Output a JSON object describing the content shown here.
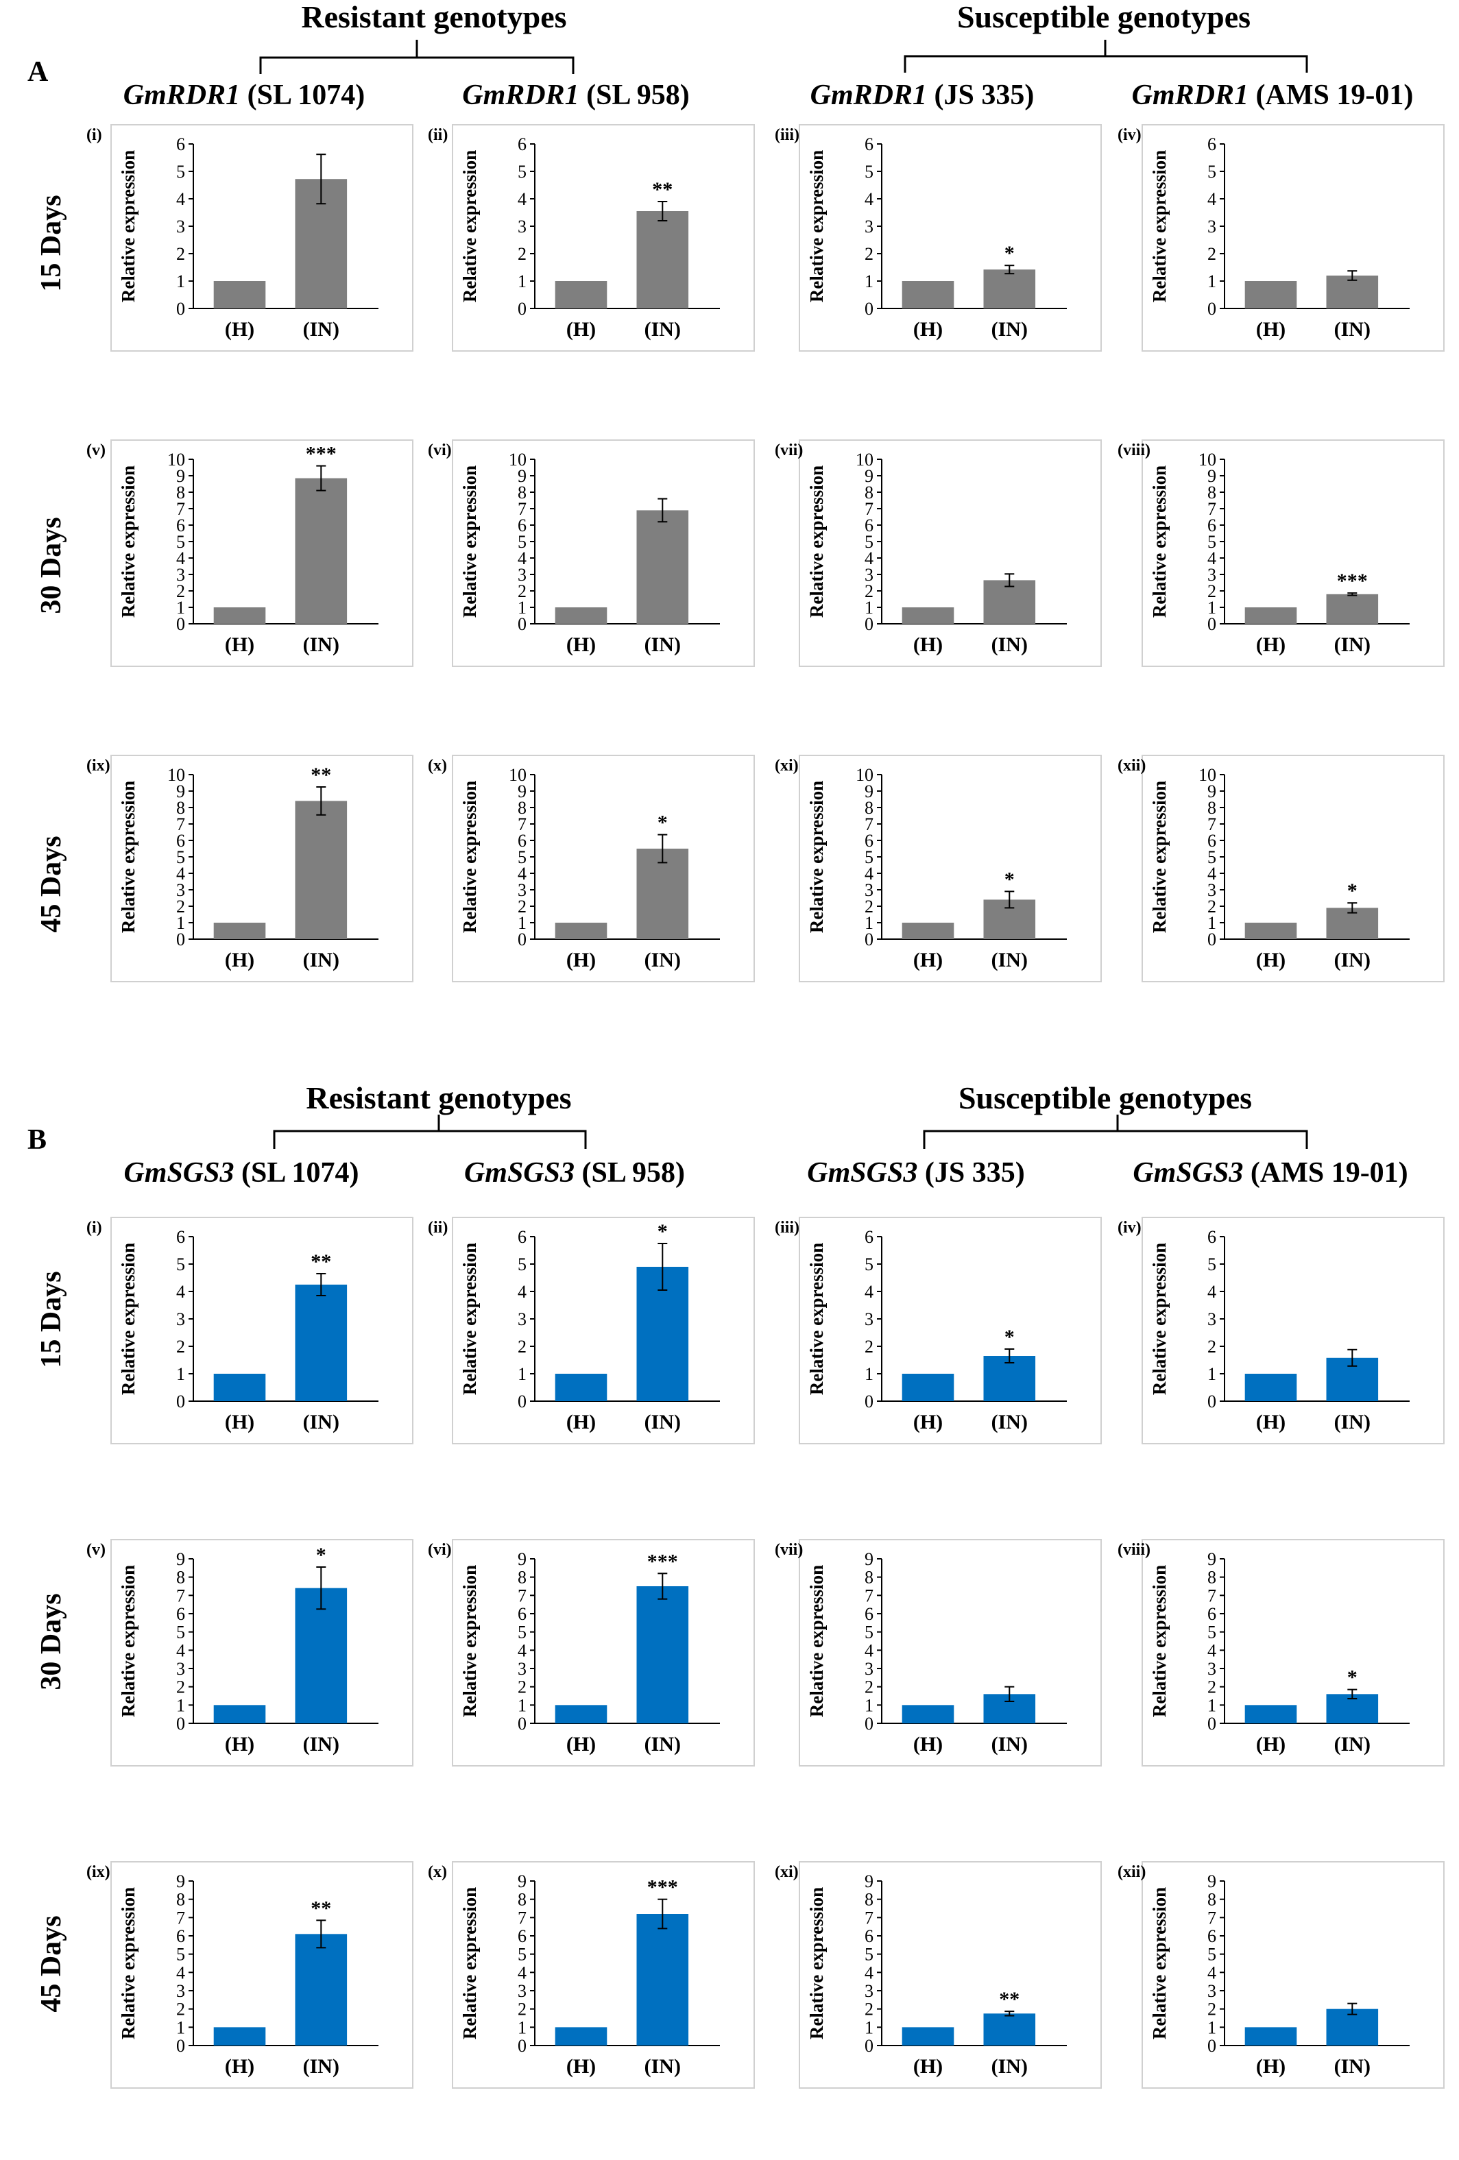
{
  "section_A": {
    "label": "A",
    "group_resistant": "Resistant genotypes",
    "group_susceptible": "Susceptible genotypes",
    "genotype_headers": [
      {
        "gene": "GmRDR1",
        "genotype": " (SL 1074)"
      },
      {
        "gene": "GmRDR1",
        "genotype": " (SL 958)"
      },
      {
        "gene": "GmRDR1",
        "genotype": " (JS 335)"
      },
      {
        "gene": "GmRDR1",
        "genotype": " (AMS 19-01)"
      }
    ],
    "day_labels": [
      "15 Days",
      "30 Days",
      "45 Days"
    ]
  },
  "section_B": {
    "label": "B",
    "group_resistant": "Resistant genotypes",
    "group_susceptible": "Susceptible genotypes",
    "genotype_headers": [
      {
        "gene": "GmSGS3",
        "genotype": " (SL 1074)"
      },
      {
        "gene": "GmSGS3",
        "genotype": " (SL 958)"
      },
      {
        "gene": "GmSGS3",
        "genotype": " (JS 335)"
      },
      {
        "gene": "GmSGS3",
        "genotype": " (AMS 19-01)"
      }
    ],
    "day_labels": [
      "15 Days",
      "30 Days",
      "45 Days"
    ]
  },
  "colors": {
    "section_A_bar": "#7f7f7f",
    "section_B_bar": "#0070c0",
    "axis": "#000000",
    "panel_border": "#d0d0d0"
  },
  "chart_data": [
    {
      "type": "bar",
      "panel": "A(i)",
      "label": "(i)",
      "ylabel": "Relative expression",
      "ylim": [
        0,
        6
      ],
      "yticks": [
        0,
        1,
        2,
        3,
        4,
        5,
        6
      ],
      "categories": [
        "(H)",
        "(IN)"
      ],
      "values": [
        1.0,
        4.72
      ],
      "errors": [
        0.02,
        0.9
      ],
      "significance": [
        "",
        ""
      ]
    },
    {
      "type": "bar",
      "panel": "A(ii)",
      "label": "(ii)",
      "ylabel": "Relative expression",
      "ylim": [
        0,
        6
      ],
      "yticks": [
        0,
        1,
        2,
        3,
        4,
        5,
        6
      ],
      "categories": [
        "(H)",
        "(IN)"
      ],
      "values": [
        1.0,
        3.55
      ],
      "errors": [
        0.02,
        0.35
      ],
      "significance": [
        "",
        "**"
      ]
    },
    {
      "type": "bar",
      "panel": "A(iii)",
      "label": "(iii)",
      "ylabel": "Relative expression",
      "ylim": [
        0,
        6
      ],
      "yticks": [
        0,
        1,
        2,
        3,
        4,
        5,
        6
      ],
      "categories": [
        "(H)",
        "(IN)"
      ],
      "values": [
        1.0,
        1.42
      ],
      "errors": [
        0.02,
        0.15
      ],
      "significance": [
        "",
        "*"
      ]
    },
    {
      "type": "bar",
      "panel": "A(iv)",
      "label": "(iv)",
      "ylabel": "Relative expression",
      "ylim": [
        0,
        6
      ],
      "yticks": [
        0,
        1,
        2,
        3,
        4,
        5,
        6
      ],
      "categories": [
        "(H)",
        "(IN)"
      ],
      "values": [
        1.0,
        1.2
      ],
      "errors": [
        0.02,
        0.17
      ],
      "significance": [
        "",
        ""
      ]
    },
    {
      "type": "bar",
      "panel": "A(v)",
      "label": "(v)",
      "ylabel": "Relative expression",
      "ylim": [
        0,
        10
      ],
      "yticks": [
        0,
        1,
        2,
        3,
        4,
        5,
        6,
        7,
        8,
        9,
        10
      ],
      "categories": [
        "(H)",
        "(IN)"
      ],
      "values": [
        1.0,
        8.85
      ],
      "errors": [
        0.03,
        0.75
      ],
      "significance": [
        "",
        "***"
      ]
    },
    {
      "type": "bar",
      "panel": "A(vi)",
      "label": "(vi)",
      "ylabel": "Relative expression",
      "ylim": [
        0,
        10
      ],
      "yticks": [
        0,
        1,
        2,
        3,
        4,
        5,
        6,
        7,
        8,
        9,
        10
      ],
      "categories": [
        "(H)",
        "(IN)"
      ],
      "values": [
        1.0,
        6.9
      ],
      "errors": [
        0.03,
        0.7
      ],
      "significance": [
        "",
        ""
      ]
    },
    {
      "type": "bar",
      "panel": "A(vii)",
      "label": "(vii)",
      "ylabel": "Relative expression",
      "ylim": [
        0,
        10
      ],
      "yticks": [
        0,
        1,
        2,
        3,
        4,
        5,
        6,
        7,
        8,
        9,
        10
      ],
      "categories": [
        "(H)",
        "(IN)"
      ],
      "values": [
        1.0,
        2.65
      ],
      "errors": [
        0.03,
        0.38
      ],
      "significance": [
        "",
        ""
      ]
    },
    {
      "type": "bar",
      "panel": "A(viii)",
      "label": "(viii)",
      "ylabel": "Relative expression",
      "ylim": [
        0,
        10
      ],
      "yticks": [
        0,
        1,
        2,
        3,
        4,
        5,
        6,
        7,
        8,
        9,
        10
      ],
      "categories": [
        "(H)",
        "(IN)"
      ],
      "values": [
        1.0,
        1.8
      ],
      "errors": [
        0.03,
        0.07
      ],
      "significance": [
        "",
        "***"
      ]
    },
    {
      "type": "bar",
      "panel": "A(ix)",
      "label": "(ix)",
      "ylabel": "Relative expression",
      "ylim": [
        0,
        10
      ],
      "yticks": [
        0,
        1,
        2,
        3,
        4,
        5,
        6,
        7,
        8,
        9,
        10
      ],
      "categories": [
        "(H)",
        "(IN)"
      ],
      "values": [
        1.0,
        8.4
      ],
      "errors": [
        0.03,
        0.85
      ],
      "significance": [
        "",
        "**"
      ]
    },
    {
      "type": "bar",
      "panel": "A(x)",
      "label": "(x)",
      "ylabel": "Relative expression",
      "ylim": [
        0,
        10
      ],
      "yticks": [
        0,
        1,
        2,
        3,
        4,
        5,
        6,
        7,
        8,
        9,
        10
      ],
      "categories": [
        "(H)",
        "(IN)"
      ],
      "values": [
        1.0,
        5.5
      ],
      "errors": [
        0.03,
        0.85
      ],
      "significance": [
        "",
        "*"
      ]
    },
    {
      "type": "bar",
      "panel": "A(xi)",
      "label": "(xi)",
      "ylabel": "Relative expression",
      "ylim": [
        0,
        10
      ],
      "yticks": [
        0,
        1,
        2,
        3,
        4,
        5,
        6,
        7,
        8,
        9,
        10
      ],
      "categories": [
        "(H)",
        "(IN)"
      ],
      "values": [
        1.0,
        2.4
      ],
      "errors": [
        0.03,
        0.5
      ],
      "significance": [
        "",
        "*"
      ]
    },
    {
      "type": "bar",
      "panel": "A(xii)",
      "label": "(xii)",
      "ylabel": "Relative expression",
      "ylim": [
        0,
        10
      ],
      "yticks": [
        0,
        1,
        2,
        3,
        4,
        5,
        6,
        7,
        8,
        9,
        10
      ],
      "categories": [
        "(H)",
        "(IN)"
      ],
      "values": [
        1.0,
        1.9
      ],
      "errors": [
        0.03,
        0.3
      ],
      "significance": [
        "",
        "*"
      ]
    },
    {
      "type": "bar",
      "panel": "B(i)",
      "label": "(i)",
      "ylabel": "Relative expression",
      "ylim": [
        0,
        6
      ],
      "yticks": [
        0,
        1,
        2,
        3,
        4,
        5,
        6
      ],
      "categories": [
        "(H)",
        "(IN)"
      ],
      "values": [
        1.0,
        4.25
      ],
      "errors": [
        0.02,
        0.4
      ],
      "significance": [
        "",
        "**"
      ]
    },
    {
      "type": "bar",
      "panel": "B(ii)",
      "label": "(ii)",
      "ylabel": "Relative expression",
      "ylim": [
        0,
        6
      ],
      "yticks": [
        0,
        1,
        2,
        3,
        4,
        5,
        6
      ],
      "categories": [
        "(H)",
        "(IN)"
      ],
      "values": [
        1.0,
        4.9
      ],
      "errors": [
        0.02,
        0.85
      ],
      "significance": [
        "",
        "*"
      ]
    },
    {
      "type": "bar",
      "panel": "B(iii)",
      "label": "(iii)",
      "ylabel": "Relative expression",
      "ylim": [
        0,
        6
      ],
      "yticks": [
        0,
        1,
        2,
        3,
        4,
        5,
        6
      ],
      "categories": [
        "(H)",
        "(IN)"
      ],
      "values": [
        1.0,
        1.65
      ],
      "errors": [
        0.02,
        0.25
      ],
      "significance": [
        "",
        "*"
      ]
    },
    {
      "type": "bar",
      "panel": "B(iv)",
      "label": "(iv)",
      "ylabel": "Relative expression",
      "ylim": [
        0,
        6
      ],
      "yticks": [
        0,
        1,
        2,
        3,
        4,
        5,
        6
      ],
      "categories": [
        "(H)",
        "(IN)"
      ],
      "values": [
        1.0,
        1.58
      ],
      "errors": [
        0.02,
        0.3
      ],
      "significance": [
        "",
        ""
      ]
    },
    {
      "type": "bar",
      "panel": "B(v)",
      "label": "(v)",
      "ylabel": "Relative expression",
      "ylim": [
        0,
        9
      ],
      "yticks": [
        0,
        1,
        2,
        3,
        4,
        5,
        6,
        7,
        8,
        9
      ],
      "categories": [
        "(H)",
        "(IN)"
      ],
      "values": [
        1.0,
        7.4
      ],
      "errors": [
        0.03,
        1.15
      ],
      "significance": [
        "",
        "*"
      ]
    },
    {
      "type": "bar",
      "panel": "B(vi)",
      "label": "(vi)",
      "ylabel": "Relative expression",
      "ylim": [
        0,
        9
      ],
      "yticks": [
        0,
        1,
        2,
        3,
        4,
        5,
        6,
        7,
        8,
        9
      ],
      "categories": [
        "(H)",
        "(IN)"
      ],
      "values": [
        1.0,
        7.5
      ],
      "errors": [
        0.03,
        0.7
      ],
      "significance": [
        "",
        "***"
      ]
    },
    {
      "type": "bar",
      "panel": "B(vii)",
      "label": "(vii)",
      "ylabel": "Relative expression",
      "ylim": [
        0,
        9
      ],
      "yticks": [
        0,
        1,
        2,
        3,
        4,
        5,
        6,
        7,
        8,
        9
      ],
      "categories": [
        "(H)",
        "(IN)"
      ],
      "values": [
        1.0,
        1.6
      ],
      "errors": [
        0.03,
        0.4
      ],
      "significance": [
        "",
        ""
      ]
    },
    {
      "type": "bar",
      "panel": "B(viii)",
      "label": "(viii)",
      "ylabel": "Relative expression",
      "ylim": [
        0,
        9
      ],
      "yticks": [
        0,
        1,
        2,
        3,
        4,
        5,
        6,
        7,
        8,
        9
      ],
      "categories": [
        "(H)",
        "(IN)"
      ],
      "values": [
        1.0,
        1.6
      ],
      "errors": [
        0.03,
        0.25
      ],
      "significance": [
        "",
        "*"
      ]
    },
    {
      "type": "bar",
      "panel": "B(ix)",
      "label": "(ix)",
      "ylabel": "Relative expression",
      "ylim": [
        0,
        9
      ],
      "yticks": [
        0,
        1,
        2,
        3,
        4,
        5,
        6,
        7,
        8,
        9
      ],
      "categories": [
        "(H)",
        "(IN)"
      ],
      "values": [
        1.0,
        6.1
      ],
      "errors": [
        0.03,
        0.75
      ],
      "significance": [
        "",
        "**"
      ]
    },
    {
      "type": "bar",
      "panel": "B(x)",
      "label": "(x)",
      "ylabel": "Relative expression",
      "ylim": [
        0,
        9
      ],
      "yticks": [
        0,
        1,
        2,
        3,
        4,
        5,
        6,
        7,
        8,
        9
      ],
      "categories": [
        "(H)",
        "(IN)"
      ],
      "values": [
        1.0,
        7.2
      ],
      "errors": [
        0.03,
        0.8
      ],
      "significance": [
        "",
        "***"
      ]
    },
    {
      "type": "bar",
      "panel": "B(xi)",
      "label": "(xi)",
      "ylabel": "Relative expression",
      "ylim": [
        0,
        9
      ],
      "yticks": [
        0,
        1,
        2,
        3,
        4,
        5,
        6,
        7,
        8,
        9
      ],
      "categories": [
        "(H)",
        "(IN)"
      ],
      "values": [
        1.0,
        1.75
      ],
      "errors": [
        0.03,
        0.12
      ],
      "significance": [
        "",
        "**"
      ]
    },
    {
      "type": "bar",
      "panel": "B(xii)",
      "label": "(xii)",
      "ylabel": "Relative expression",
      "ylim": [
        0,
        9
      ],
      "yticks": [
        0,
        1,
        2,
        3,
        4,
        5,
        6,
        7,
        8,
        9
      ],
      "categories": [
        "(H)",
        "(IN)"
      ],
      "values": [
        1.0,
        2.0
      ],
      "errors": [
        0.03,
        0.3
      ],
      "significance": [
        "",
        ""
      ]
    }
  ]
}
